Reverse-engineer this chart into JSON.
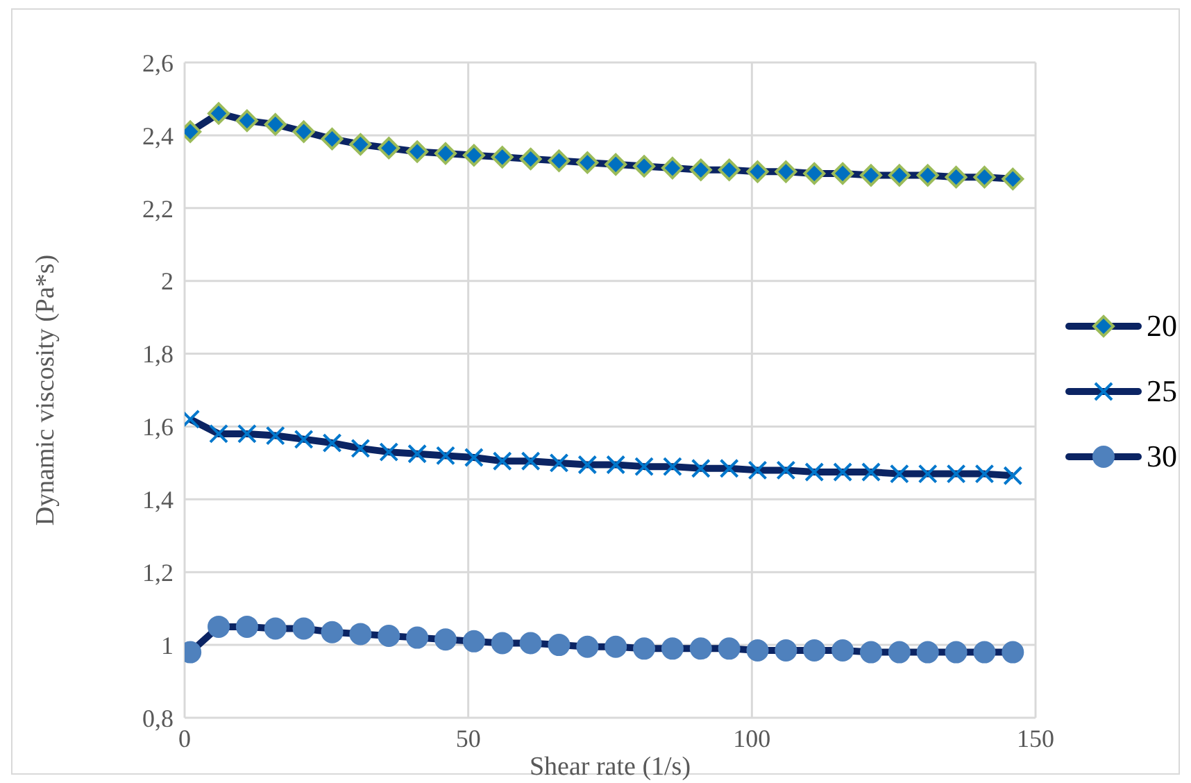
{
  "chart_data": {
    "type": "line",
    "xlabel": "Shear rate (1/s)",
    "ylabel": "Dynamic viscosity (Pa*s)",
    "x": [
      1,
      6,
      11,
      16,
      21,
      26,
      31,
      36,
      41,
      46,
      51,
      56,
      61,
      66,
      71,
      76,
      81,
      86,
      91,
      96,
      101,
      106,
      111,
      116,
      121,
      126,
      131,
      136,
      141,
      146
    ],
    "series": [
      {
        "name": "20",
        "color": "#0b2463",
        "marker": "diamond",
        "values": [
          2.41,
          2.46,
          2.44,
          2.43,
          2.41,
          2.39,
          2.375,
          2.365,
          2.355,
          2.35,
          2.345,
          2.34,
          2.335,
          2.33,
          2.325,
          2.32,
          2.315,
          2.31,
          2.305,
          2.305,
          2.3,
          2.3,
          2.295,
          2.295,
          2.29,
          2.29,
          2.29,
          2.285,
          2.285,
          2.28
        ]
      },
      {
        "name": "25",
        "color": "#0b2463",
        "marker": "cross",
        "values": [
          1.62,
          1.58,
          1.58,
          1.575,
          1.565,
          1.555,
          1.54,
          1.53,
          1.525,
          1.52,
          1.515,
          1.505,
          1.505,
          1.5,
          1.495,
          1.495,
          1.49,
          1.49,
          1.485,
          1.485,
          1.48,
          1.48,
          1.475,
          1.475,
          1.475,
          1.47,
          1.47,
          1.47,
          1.47,
          1.465
        ]
      },
      {
        "name": "30",
        "color": "#0b2463",
        "marker": "circle",
        "values": [
          0.98,
          1.05,
          1.05,
          1.045,
          1.045,
          1.035,
          1.03,
          1.025,
          1.02,
          1.015,
          1.01,
          1.005,
          1.005,
          1.0,
          0.995,
          0.995,
          0.99,
          0.99,
          0.99,
          0.99,
          0.985,
          0.985,
          0.985,
          0.985,
          0.98,
          0.98,
          0.98,
          0.98,
          0.98,
          0.98
        ]
      }
    ],
    "xlim": [
      0,
      150
    ],
    "xticks": [
      0,
      50,
      100,
      150
    ],
    "ylim": [
      0.8,
      2.6
    ],
    "yticks": [
      {
        "value": 0.8,
        "label": "0,8"
      },
      {
        "value": 1,
        "label": "1"
      },
      {
        "value": 1.2,
        "label": "1,2"
      },
      {
        "value": 1.4,
        "label": "1,4"
      },
      {
        "value": 1.6,
        "label": "1,6"
      },
      {
        "value": 1.8,
        "label": "1,8"
      },
      {
        "value": 2,
        "label": "2"
      },
      {
        "value": 2.2,
        "label": "2,2"
      },
      {
        "value": 2.4,
        "label": "2,4"
      },
      {
        "value": 2.6,
        "label": "2,6"
      }
    ],
    "grid": true,
    "legend": "right",
    "line_style": "solid"
  }
}
